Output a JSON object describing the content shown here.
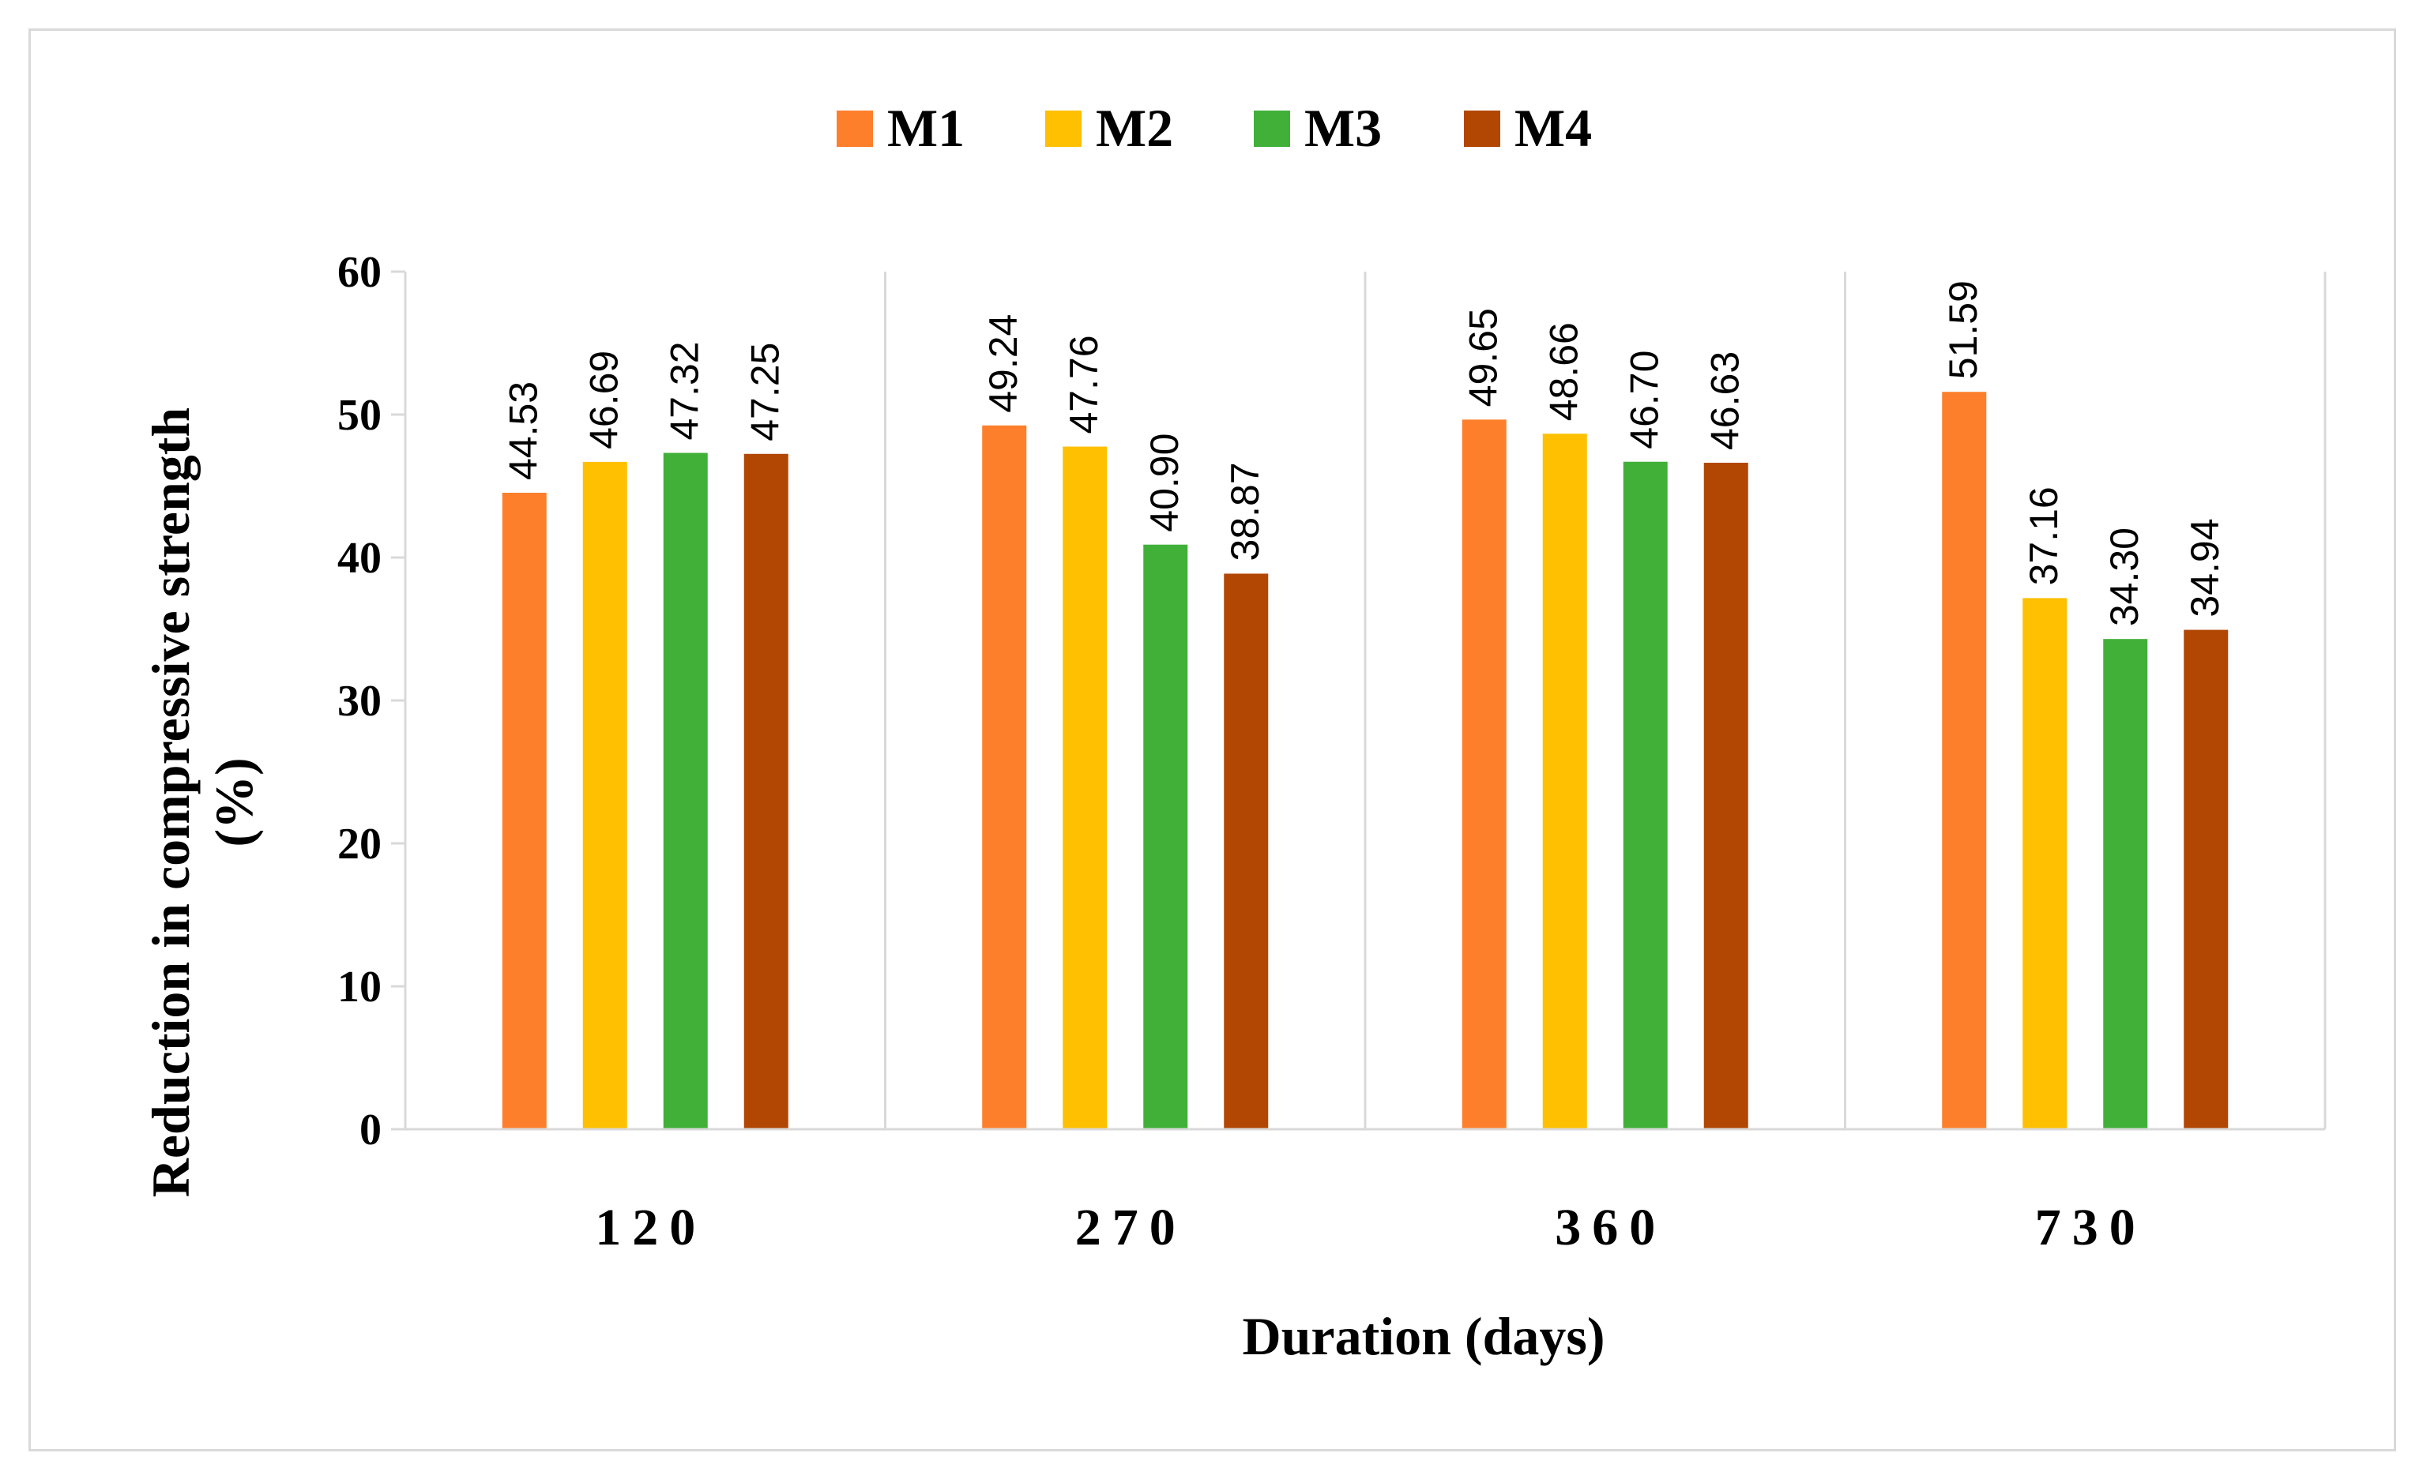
{
  "chart_data": {
    "type": "bar",
    "title": "",
    "categories": [
      "120",
      "270",
      "360",
      "730"
    ],
    "series": [
      {
        "name": "M1",
        "color": "#fe7f2b",
        "values": [
          44.53,
          49.24,
          49.65,
          51.59
        ]
      },
      {
        "name": "M2",
        "color": "#fec000",
        "values": [
          46.69,
          47.76,
          48.66,
          37.16
        ]
      },
      {
        "name": "M3",
        "color": "#40b039",
        "values": [
          47.32,
          40.9,
          46.7,
          34.3
        ]
      },
      {
        "name": "M4",
        "color": "#b14703",
        "values": [
          47.25,
          38.87,
          46.63,
          34.94
        ]
      }
    ],
    "value_labels": [
      [
        "44.53",
        "49.24",
        "49.65",
        "51.59"
      ],
      [
        "46.69",
        "47.76",
        "48.66",
        "37.16"
      ],
      [
        "47.32",
        "40.90",
        "46.70",
        "34.30"
      ],
      [
        "47.25",
        "38.87",
        "46.63",
        "34.94"
      ]
    ],
    "xlabel": "Duration (days)",
    "ylabel_line1": "Reduction in compressive strength",
    "ylabel_line2": "(%)",
    "ylim": [
      0,
      60
    ],
    "yticks": [
      0,
      10,
      20,
      30,
      40,
      50,
      60
    ],
    "ytick_labels": [
      "0",
      "10",
      "20",
      "30",
      "40",
      "50",
      "60"
    ],
    "legend_position": "top-center",
    "grid": false,
    "axis_color": "#d9d9d9"
  }
}
